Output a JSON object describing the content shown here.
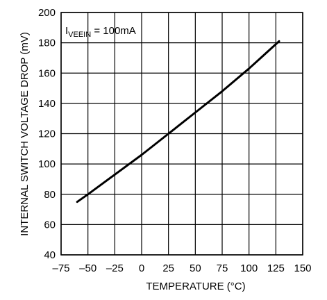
{
  "chart_data": {
    "type": "line",
    "title": "",
    "xlabel": "TEMPERATURE (°C)",
    "ylabel": "INTERNAL SWITCH VOLTAGE DROP (mV)",
    "xlim": [
      -75,
      150
    ],
    "ylim": [
      40,
      200
    ],
    "x_ticks": [
      -75,
      -50,
      -25,
      0,
      25,
      50,
      75,
      100,
      125,
      150
    ],
    "x_tick_labels": [
      "–75",
      "–50",
      "–25",
      "0",
      "25",
      "50",
      "75",
      "100",
      "125",
      "150"
    ],
    "y_ticks": [
      40,
      60,
      80,
      100,
      120,
      140,
      160,
      180,
      200
    ],
    "y_tick_labels": [
      "40",
      "60",
      "80",
      "100",
      "120",
      "140",
      "160",
      "180",
      "200"
    ],
    "grid": true,
    "annotation": {
      "prefix": "I",
      "subscript": "VEEIN",
      "suffix": " = 100mA"
    },
    "series": [
      {
        "color": "#000000",
        "x": [
          -60,
          -50,
          -25,
          0,
          25,
          50,
          75,
          100,
          128
        ],
        "y": [
          75,
          80,
          93,
          106,
          120,
          134,
          148,
          163,
          181
        ]
      }
    ]
  }
}
